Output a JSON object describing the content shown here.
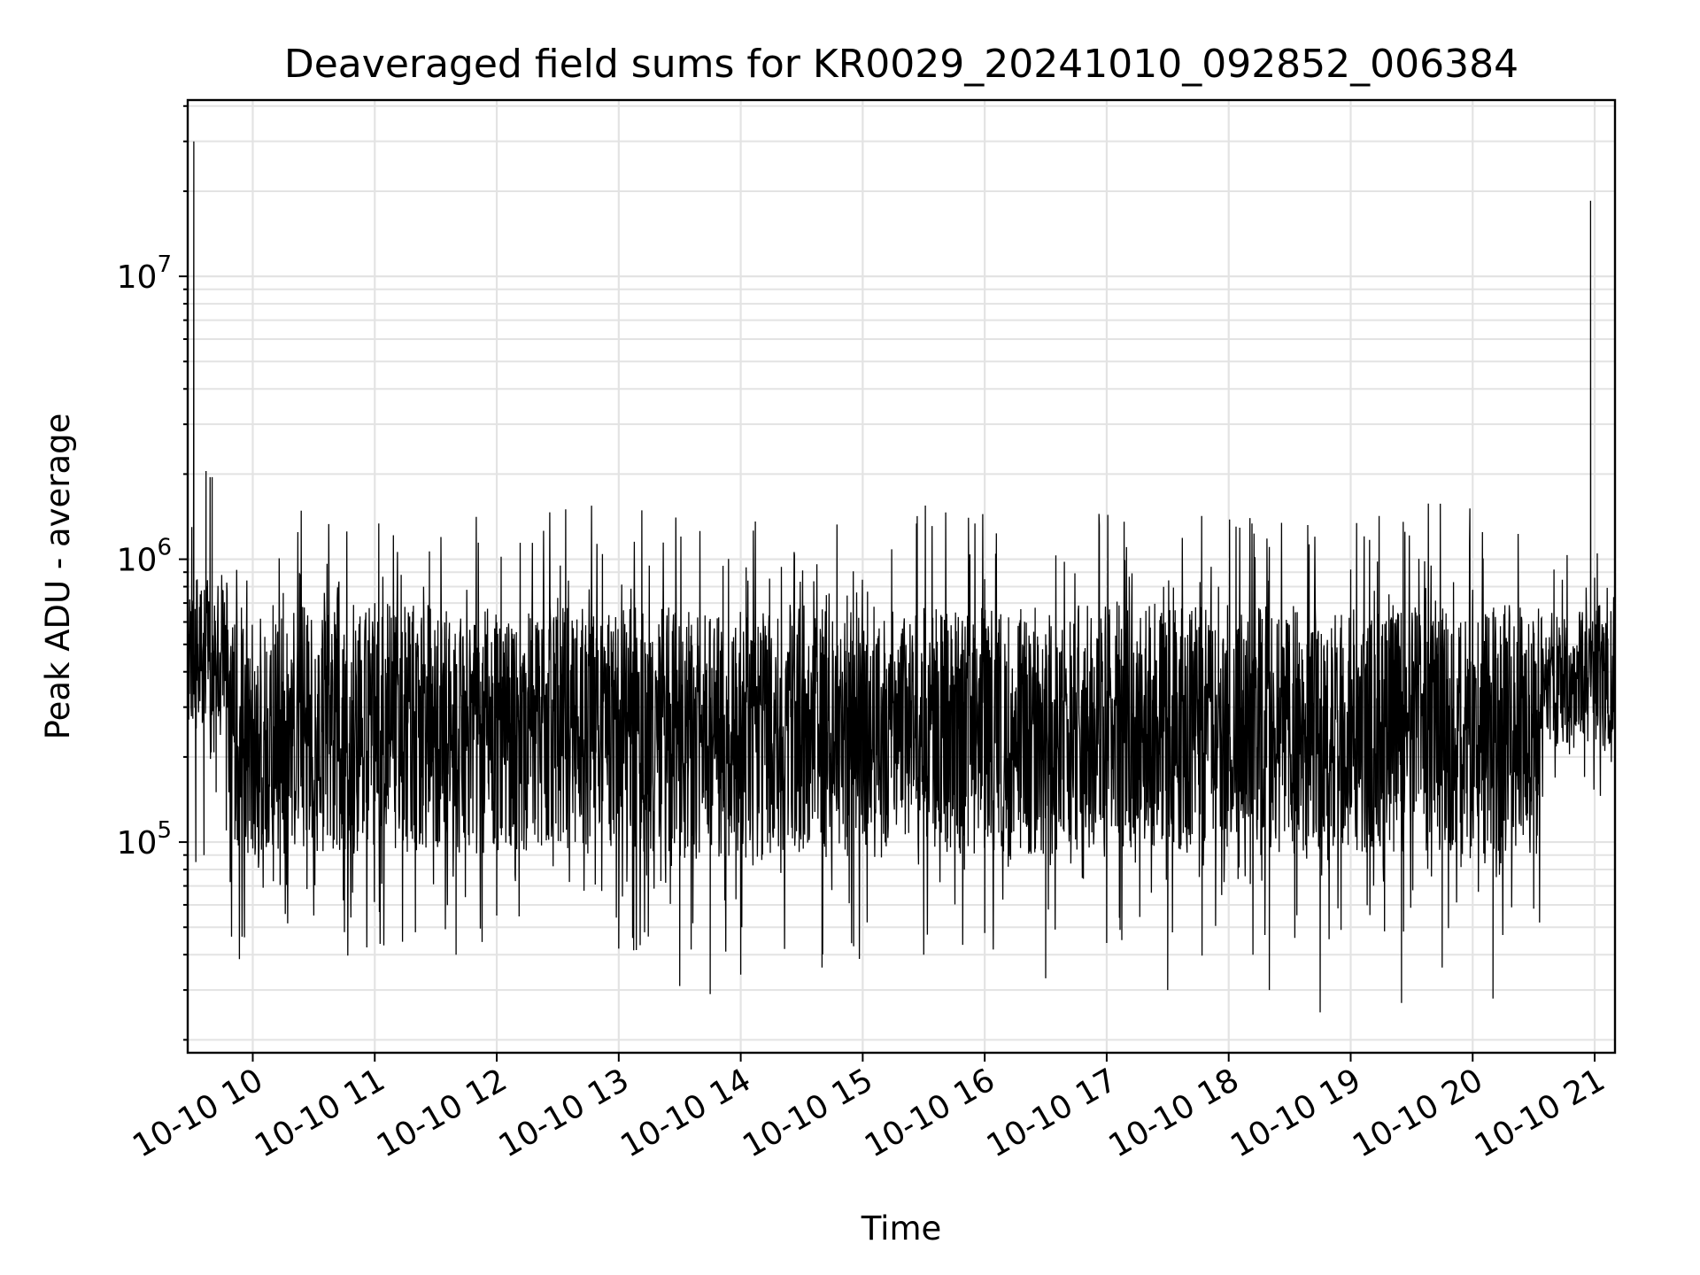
{
  "chart_data": {
    "type": "line",
    "title": "Deaveraged field sums for KR0029_20241010_092852_006384",
    "xlabel": "Time",
    "ylabel": "Peak ADU - average",
    "xlim": [
      "2024-10-10 09:28",
      "2024-10-10 21:10"
    ],
    "ylim": [
      18000,
      42000000
    ],
    "yscale": "log",
    "grid": true,
    "x_tick_labels": [
      "10-10 10",
      "10-10 11",
      "10-10 12",
      "10-10 13",
      "10-10 14",
      "10-10 15",
      "10-10 16",
      "10-10 17",
      "10-10 18",
      "10-10 19",
      "10-10 20",
      "10-10 21"
    ],
    "y_tick_labels": [
      {
        "base": "10",
        "exp": "5",
        "value": 100000
      },
      {
        "base": "10",
        "exp": "6",
        "value": 1000000
      },
      {
        "base": "10",
        "exp": "7",
        "value": 10000000
      }
    ],
    "series": [
      {
        "color": "#000000",
        "points": [
          [
            "2024-10-10 09:28",
            600000
          ],
          [
            "2024-10-10 09:30",
            1300000
          ],
          [
            "2024-10-10 09:31",
            30000000
          ],
          [
            "2024-10-10 09:32",
            85000
          ],
          [
            "2024-10-10 09:34",
            450000
          ],
          [
            "2024-10-10 09:36",
            90000
          ],
          [
            "2024-10-10 09:37",
            2050000
          ],
          [
            "2024-10-10 09:39",
            1950000
          ],
          [
            "2024-10-10 09:40",
            1950000
          ],
          [
            "2024-10-10 09:42",
            150000
          ],
          [
            "2024-10-10 09:45",
            720000
          ],
          [
            "2024-10-10 09:47",
            110000
          ],
          [
            "2024-10-10 09:55",
            420000
          ],
          [
            "2024-10-10 10:00",
            95000
          ],
          [
            "2024-10-10 10:15",
            760000
          ],
          [
            "2024-10-10 10:30",
            55000
          ],
          [
            "2024-10-10 11:00",
            700000
          ],
          [
            "2024-10-10 11:20",
            48000
          ],
          [
            "2024-10-10 11:40",
            40000
          ],
          [
            "2024-10-10 12:00",
            55000
          ],
          [
            "2024-10-10 12:30",
            730000
          ],
          [
            "2024-10-10 13:00",
            42000
          ],
          [
            "2024-10-10 13:15",
            900000
          ],
          [
            "2024-10-10 13:30",
            31000
          ],
          [
            "2024-10-10 13:45",
            29000
          ],
          [
            "2024-10-10 14:00",
            34000
          ],
          [
            "2024-10-10 14:20",
            940000
          ],
          [
            "2024-10-10 14:40",
            36000
          ],
          [
            "2024-10-10 15:00",
            230000
          ],
          [
            "2024-10-10 15:30",
            40000
          ],
          [
            "2024-10-10 16:00",
            850000
          ],
          [
            "2024-10-10 16:30",
            33000
          ],
          [
            "2024-10-10 17:00",
            44000
          ],
          [
            "2024-10-10 17:30",
            30000
          ],
          [
            "2024-10-10 17:55",
            800000
          ],
          [
            "2024-10-10 18:20",
            30000
          ],
          [
            "2024-10-10 18:45",
            25000
          ],
          [
            "2024-10-10 19:00",
            920000
          ],
          [
            "2024-10-10 19:25",
            27000
          ],
          [
            "2024-10-10 19:45",
            36000
          ],
          [
            "2024-10-10 20:00",
            780000
          ],
          [
            "2024-10-10 20:10",
            28000
          ],
          [
            "2024-10-10 20:40",
            920000
          ],
          [
            "2024-10-10 20:55",
            170000
          ],
          [
            "2024-10-10 20:58",
            18500000
          ],
          [
            "2024-10-10 21:00",
            860000
          ],
          [
            "2024-10-10 21:05",
            210000
          ],
          [
            "2024-10-10 21:10",
            450000
          ]
        ]
      }
    ]
  }
}
